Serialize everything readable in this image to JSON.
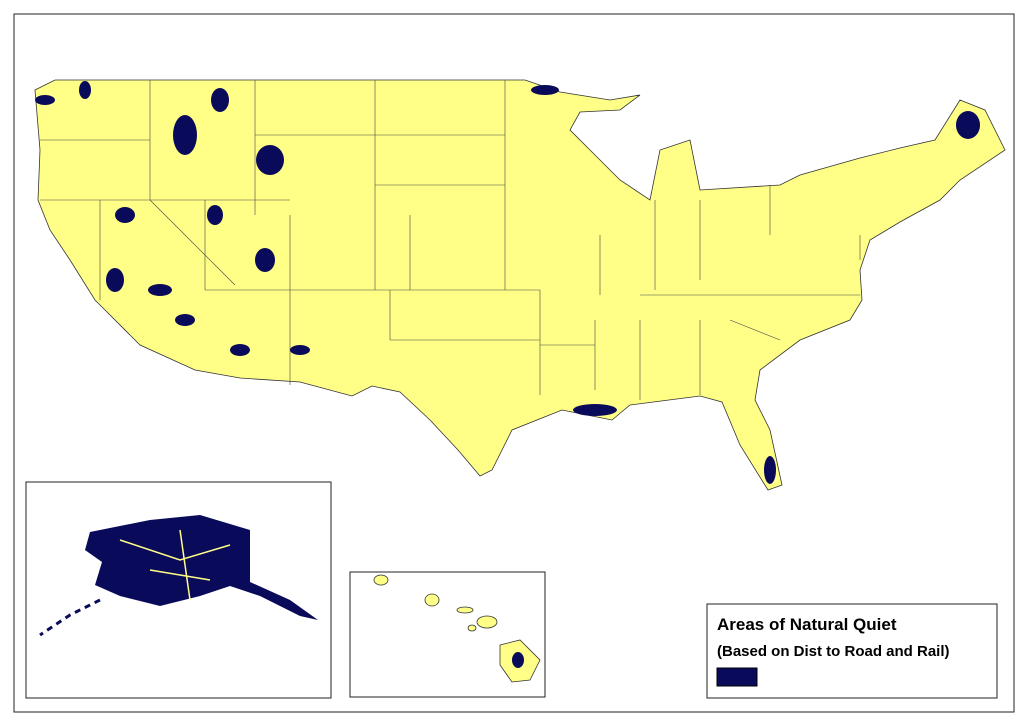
{
  "legend": {
    "title": "Areas of Natural Quiet",
    "subtitle": "(Based on Dist to Road and Rail)"
  }
}
